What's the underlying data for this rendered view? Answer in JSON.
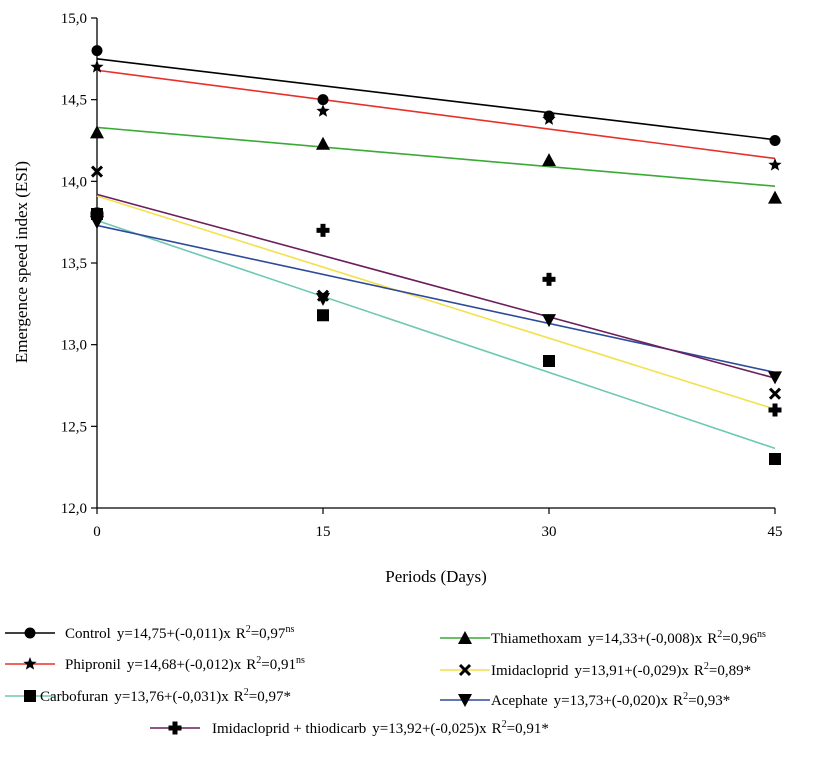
{
  "chart_data": {
    "type": "scatter",
    "xlabel": "Periods (Days)",
    "ylabel": "Emergence speed index (ESI)",
    "xlim": [
      0,
      45
    ],
    "ylim": [
      12.0,
      15.0
    ],
    "x_ticks": [
      0,
      15,
      30,
      45
    ],
    "x_tick_labels": [
      "0",
      "15",
      "30",
      "45"
    ],
    "y_ticks": [
      12.0,
      12.5,
      13.0,
      13.5,
      14.0,
      14.5,
      15.0
    ],
    "y_tick_labels": [
      "12,0",
      "12,5",
      "13,0",
      "13,5",
      "14,0",
      "14,5",
      "15,0"
    ],
    "x": [
      0,
      15,
      30,
      45
    ],
    "grid": false,
    "legend_position": "bottom",
    "series": [
      {
        "name": "Control",
        "equation": "y=14,75+(-0,011)x",
        "r2_prefix": "R",
        "r2_value": "=0,97",
        "r2_sup": "ns",
        "marker": "circle",
        "line_color": "#000000",
        "intercept": 14.75,
        "slope": -0.011,
        "values": [
          14.8,
          14.5,
          14.4,
          14.25
        ]
      },
      {
        "name": "Phipronil",
        "equation": "y=14,68+(-0,012)x",
        "r2_prefix": "R",
        "r2_value": "=0,91",
        "r2_sup": "ns",
        "marker": "star",
        "line_color": "#e8302a",
        "intercept": 14.68,
        "slope": -0.012,
        "values": [
          14.7,
          14.43,
          14.38,
          14.1
        ]
      },
      {
        "name": "Carbofuran",
        "equation": "y=13,76+(-0,031)x",
        "r2_prefix": "R",
        "r2_value": "=0,97*",
        "r2_sup": "",
        "marker": "square",
        "line_color": "#6fc8b4",
        "intercept": 13.76,
        "slope": -0.031,
        "values": [
          13.8,
          13.18,
          12.9,
          12.3
        ]
      },
      {
        "name": "Thiamethoxam",
        "equation": "y=14,33+(-0,008)x",
        "r2_prefix": "R",
        "r2_value": "=0,96",
        "r2_sup": "ns",
        "marker": "triangle-up",
        "line_color": "#3aaa35",
        "intercept": 14.33,
        "slope": -0.008,
        "values": [
          14.3,
          14.23,
          14.13,
          13.9
        ]
      },
      {
        "name": "Imidacloprid",
        "equation": "y=13,91+(-0,029)x",
        "r2_prefix": "R",
        "r2_value": "=0,89*",
        "r2_sup": "",
        "marker": "x",
        "line_color": "#f2e14c",
        "intercept": 13.91,
        "slope": -0.029,
        "values": [
          14.06,
          13.3,
          12.9,
          12.7
        ]
      },
      {
        "name": "Acephate",
        "equation": "y=13,73+(-0,020)x",
        "r2_prefix": "R",
        "r2_value": "=0,93*",
        "r2_sup": "",
        "marker": "triangle-down",
        "line_color": "#2d4a9a",
        "intercept": 13.73,
        "slope": -0.02,
        "values": [
          13.75,
          13.28,
          13.15,
          12.8
        ]
      },
      {
        "name": "Imidacloprid + thiodicarb",
        "equation": "y=13,92+(-0,025)x",
        "r2_prefix": "R",
        "r2_value": "=0,91*",
        "r2_sup": "",
        "marker": "cross",
        "line_color": "#6a1f5c",
        "intercept": 13.92,
        "slope": -0.025,
        "values": [
          13.8,
          13.7,
          13.4,
          12.6
        ]
      }
    ]
  }
}
